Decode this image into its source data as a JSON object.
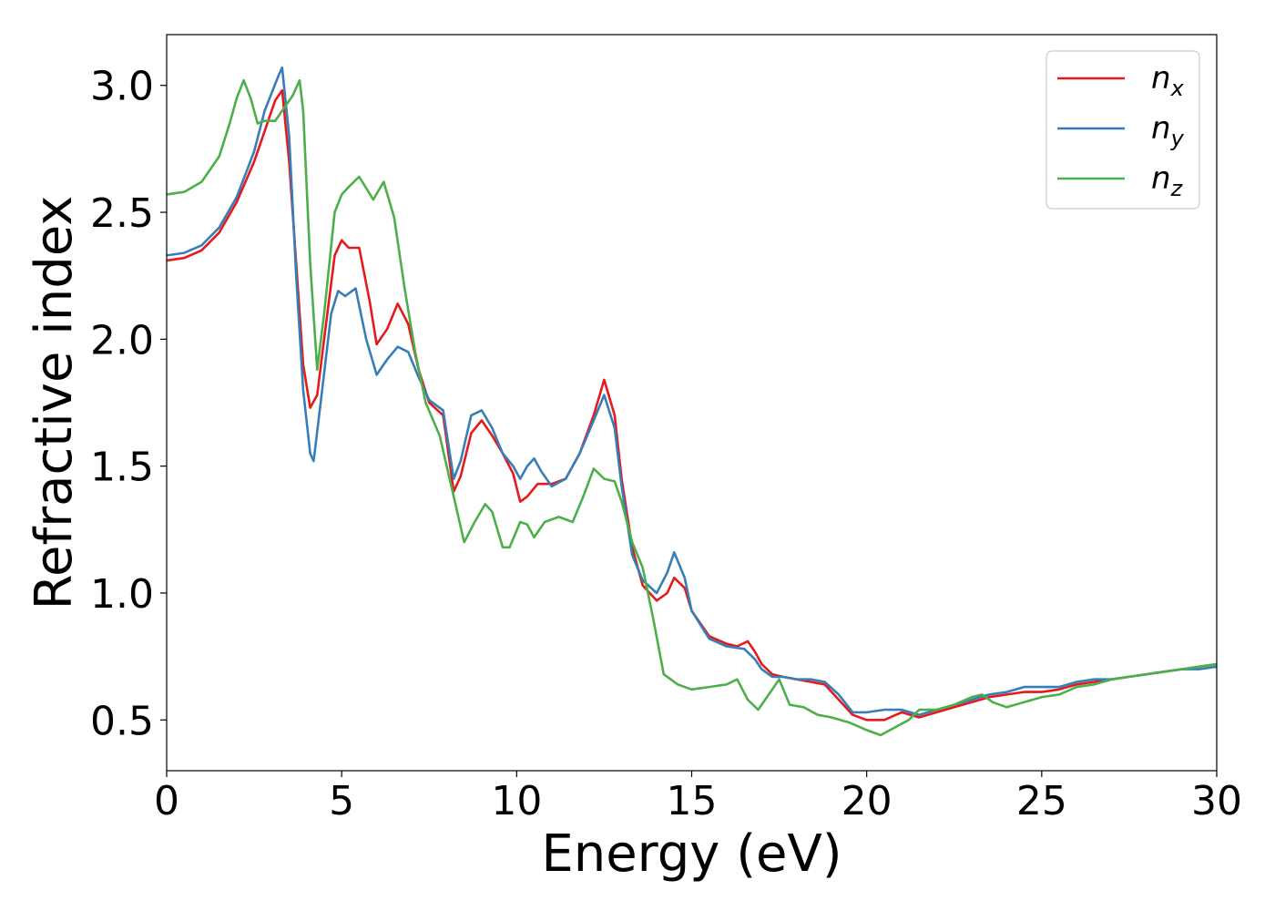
{
  "chart_data": {
    "type": "line",
    "title": "",
    "xlabel": "Energy (eV)",
    "ylabel": "Refractive index",
    "xlim": [
      0,
      30
    ],
    "ylim": [
      0.3,
      3.2
    ],
    "x_ticks": [
      0,
      5,
      10,
      15,
      20,
      25,
      30
    ],
    "y_ticks": [
      0.5,
      1.0,
      1.5,
      2.0,
      2.5,
      3.0
    ],
    "x_tick_labels": [
      "0",
      "5",
      "10",
      "15",
      "20",
      "25",
      "30"
    ],
    "y_tick_labels": [
      "0.5",
      "1.0",
      "1.5",
      "2.0",
      "2.5",
      "3.0"
    ],
    "grid": false,
    "legend_position": "top-right",
    "series": [
      {
        "name": "n",
        "subscript": "x",
        "color": "#e41a1c",
        "points": [
          [
            0,
            2.31
          ],
          [
            0.5,
            2.32
          ],
          [
            1.0,
            2.35
          ],
          [
            1.5,
            2.42
          ],
          [
            2.0,
            2.54
          ],
          [
            2.5,
            2.7
          ],
          [
            2.8,
            2.82
          ],
          [
            3.1,
            2.94
          ],
          [
            3.3,
            2.98
          ],
          [
            3.5,
            2.7
          ],
          [
            3.7,
            2.3
          ],
          [
            3.9,
            1.9
          ],
          [
            4.1,
            1.73
          ],
          [
            4.3,
            1.78
          ],
          [
            4.5,
            2.0
          ],
          [
            4.8,
            2.33
          ],
          [
            5.0,
            2.39
          ],
          [
            5.2,
            2.36
          ],
          [
            5.5,
            2.36
          ],
          [
            5.8,
            2.15
          ],
          [
            6.0,
            1.98
          ],
          [
            6.3,
            2.04
          ],
          [
            6.6,
            2.14
          ],
          [
            6.9,
            2.06
          ],
          [
            7.2,
            1.88
          ],
          [
            7.5,
            1.75
          ],
          [
            7.9,
            1.7
          ],
          [
            8.2,
            1.4
          ],
          [
            8.4,
            1.46
          ],
          [
            8.7,
            1.63
          ],
          [
            9.0,
            1.68
          ],
          [
            9.3,
            1.62
          ],
          [
            9.6,
            1.55
          ],
          [
            9.9,
            1.47
          ],
          [
            10.1,
            1.36
          ],
          [
            10.3,
            1.38
          ],
          [
            10.6,
            1.43
          ],
          [
            11.0,
            1.43
          ],
          [
            11.4,
            1.45
          ],
          [
            11.8,
            1.55
          ],
          [
            12.2,
            1.7
          ],
          [
            12.5,
            1.84
          ],
          [
            12.8,
            1.7
          ],
          [
            13.0,
            1.45
          ],
          [
            13.3,
            1.18
          ],
          [
            13.6,
            1.03
          ],
          [
            14.0,
            0.97
          ],
          [
            14.3,
            1.0
          ],
          [
            14.5,
            1.06
          ],
          [
            14.8,
            1.02
          ],
          [
            15.0,
            0.93
          ],
          [
            15.5,
            0.83
          ],
          [
            16.0,
            0.8
          ],
          [
            16.3,
            0.79
          ],
          [
            16.6,
            0.81
          ],
          [
            16.8,
            0.77
          ],
          [
            17.0,
            0.72
          ],
          [
            17.3,
            0.68
          ],
          [
            17.6,
            0.67
          ],
          [
            18.0,
            0.66
          ],
          [
            18.4,
            0.65
          ],
          [
            18.8,
            0.64
          ],
          [
            19.2,
            0.58
          ],
          [
            19.6,
            0.52
          ],
          [
            20.0,
            0.5
          ],
          [
            20.5,
            0.5
          ],
          [
            21.0,
            0.53
          ],
          [
            21.5,
            0.51
          ],
          [
            22.0,
            0.53
          ],
          [
            22.5,
            0.55
          ],
          [
            23.0,
            0.57
          ],
          [
            23.5,
            0.59
          ],
          [
            24.0,
            0.6
          ],
          [
            24.5,
            0.61
          ],
          [
            25.0,
            0.61
          ],
          [
            25.5,
            0.62
          ],
          [
            26.0,
            0.64
          ],
          [
            26.5,
            0.65
          ],
          [
            27.0,
            0.66
          ],
          [
            27.5,
            0.67
          ],
          [
            28.0,
            0.68
          ],
          [
            28.5,
            0.69
          ],
          [
            29.0,
            0.7
          ],
          [
            29.5,
            0.71
          ],
          [
            30.0,
            0.72
          ]
        ]
      },
      {
        "name": "n",
        "subscript": "y",
        "color": "#377eb8",
        "points": [
          [
            0,
            2.33
          ],
          [
            0.5,
            2.34
          ],
          [
            1.0,
            2.37
          ],
          [
            1.5,
            2.44
          ],
          [
            2.0,
            2.56
          ],
          [
            2.5,
            2.74
          ],
          [
            2.8,
            2.9
          ],
          [
            3.0,
            2.97
          ],
          [
            3.2,
            3.04
          ],
          [
            3.3,
            3.07
          ],
          [
            3.5,
            2.8
          ],
          [
            3.7,
            2.25
          ],
          [
            3.9,
            1.8
          ],
          [
            4.1,
            1.55
          ],
          [
            4.2,
            1.52
          ],
          [
            4.4,
            1.75
          ],
          [
            4.7,
            2.1
          ],
          [
            4.9,
            2.19
          ],
          [
            5.1,
            2.17
          ],
          [
            5.4,
            2.2
          ],
          [
            5.7,
            2.0
          ],
          [
            6.0,
            1.86
          ],
          [
            6.3,
            1.92
          ],
          [
            6.6,
            1.97
          ],
          [
            6.9,
            1.95
          ],
          [
            7.2,
            1.85
          ],
          [
            7.5,
            1.76
          ],
          [
            7.9,
            1.72
          ],
          [
            8.2,
            1.45
          ],
          [
            8.4,
            1.52
          ],
          [
            8.7,
            1.7
          ],
          [
            9.0,
            1.72
          ],
          [
            9.3,
            1.65
          ],
          [
            9.6,
            1.55
          ],
          [
            9.9,
            1.5
          ],
          [
            10.1,
            1.45
          ],
          [
            10.3,
            1.5
          ],
          [
            10.5,
            1.53
          ],
          [
            10.7,
            1.48
          ],
          [
            11.0,
            1.42
          ],
          [
            11.4,
            1.45
          ],
          [
            11.8,
            1.55
          ],
          [
            12.2,
            1.68
          ],
          [
            12.5,
            1.78
          ],
          [
            12.8,
            1.65
          ],
          [
            13.0,
            1.42
          ],
          [
            13.3,
            1.15
          ],
          [
            13.6,
            1.05
          ],
          [
            14.0,
            1.0
          ],
          [
            14.3,
            1.08
          ],
          [
            14.5,
            1.16
          ],
          [
            14.8,
            1.06
          ],
          [
            15.0,
            0.93
          ],
          [
            15.5,
            0.82
          ],
          [
            16.0,
            0.79
          ],
          [
            16.5,
            0.78
          ],
          [
            16.8,
            0.74
          ],
          [
            17.0,
            0.7
          ],
          [
            17.3,
            0.67
          ],
          [
            17.6,
            0.67
          ],
          [
            18.0,
            0.66
          ],
          [
            18.4,
            0.66
          ],
          [
            18.8,
            0.65
          ],
          [
            19.2,
            0.6
          ],
          [
            19.6,
            0.53
          ],
          [
            20.0,
            0.53
          ],
          [
            20.5,
            0.54
          ],
          [
            21.0,
            0.54
          ],
          [
            21.5,
            0.52
          ],
          [
            22.0,
            0.54
          ],
          [
            22.5,
            0.56
          ],
          [
            23.0,
            0.58
          ],
          [
            23.5,
            0.6
          ],
          [
            24.0,
            0.61
          ],
          [
            24.5,
            0.63
          ],
          [
            25.0,
            0.63
          ],
          [
            25.5,
            0.63
          ],
          [
            26.0,
            0.65
          ],
          [
            26.5,
            0.66
          ],
          [
            27.0,
            0.66
          ],
          [
            27.5,
            0.67
          ],
          [
            28.0,
            0.68
          ],
          [
            28.5,
            0.69
          ],
          [
            29.0,
            0.7
          ],
          [
            29.5,
            0.7
          ],
          [
            30.0,
            0.71
          ]
        ]
      },
      {
        "name": "n",
        "subscript": "z",
        "color": "#4daf4a",
        "points": [
          [
            0,
            2.57
          ],
          [
            0.5,
            2.58
          ],
          [
            1.0,
            2.62
          ],
          [
            1.5,
            2.72
          ],
          [
            1.8,
            2.85
          ],
          [
            2.0,
            2.95
          ],
          [
            2.2,
            3.02
          ],
          [
            2.4,
            2.95
          ],
          [
            2.6,
            2.85
          ],
          [
            2.8,
            2.86
          ],
          [
            3.1,
            2.86
          ],
          [
            3.4,
            2.92
          ],
          [
            3.6,
            2.96
          ],
          [
            3.8,
            3.02
          ],
          [
            3.9,
            2.9
          ],
          [
            4.1,
            2.3
          ],
          [
            4.3,
            1.88
          ],
          [
            4.5,
            2.1
          ],
          [
            4.8,
            2.5
          ],
          [
            5.0,
            2.57
          ],
          [
            5.2,
            2.6
          ],
          [
            5.5,
            2.64
          ],
          [
            5.9,
            2.55
          ],
          [
            6.2,
            2.62
          ],
          [
            6.5,
            2.48
          ],
          [
            6.8,
            2.2
          ],
          [
            7.1,
            1.95
          ],
          [
            7.4,
            1.75
          ],
          [
            7.8,
            1.62
          ],
          [
            8.2,
            1.38
          ],
          [
            8.5,
            1.2
          ],
          [
            8.8,
            1.28
          ],
          [
            9.1,
            1.35
          ],
          [
            9.3,
            1.32
          ],
          [
            9.6,
            1.18
          ],
          [
            9.8,
            1.18
          ],
          [
            10.1,
            1.28
          ],
          [
            10.3,
            1.27
          ],
          [
            10.5,
            1.22
          ],
          [
            10.8,
            1.28
          ],
          [
            11.2,
            1.3
          ],
          [
            11.6,
            1.28
          ],
          [
            11.9,
            1.38
          ],
          [
            12.2,
            1.49
          ],
          [
            12.5,
            1.45
          ],
          [
            12.8,
            1.44
          ],
          [
            13.0,
            1.36
          ],
          [
            13.3,
            1.2
          ],
          [
            13.6,
            1.1
          ],
          [
            13.9,
            0.9
          ],
          [
            14.2,
            0.68
          ],
          [
            14.6,
            0.64
          ],
          [
            15.0,
            0.62
          ],
          [
            15.5,
            0.63
          ],
          [
            16.0,
            0.64
          ],
          [
            16.3,
            0.66
          ],
          [
            16.6,
            0.58
          ],
          [
            16.9,
            0.54
          ],
          [
            17.2,
            0.6
          ],
          [
            17.5,
            0.66
          ],
          [
            17.8,
            0.56
          ],
          [
            18.2,
            0.55
          ],
          [
            18.6,
            0.52
          ],
          [
            19.0,
            0.51
          ],
          [
            19.5,
            0.49
          ],
          [
            20.0,
            0.46
          ],
          [
            20.4,
            0.44
          ],
          [
            20.8,
            0.47
          ],
          [
            21.2,
            0.5
          ],
          [
            21.5,
            0.54
          ],
          [
            22.0,
            0.54
          ],
          [
            22.5,
            0.56
          ],
          [
            23.0,
            0.59
          ],
          [
            23.3,
            0.6
          ],
          [
            23.6,
            0.57
          ],
          [
            24.0,
            0.55
          ],
          [
            24.5,
            0.57
          ],
          [
            25.0,
            0.59
          ],
          [
            25.5,
            0.6
          ],
          [
            26.0,
            0.63
          ],
          [
            26.5,
            0.64
          ],
          [
            27.0,
            0.66
          ],
          [
            27.5,
            0.67
          ],
          [
            28.0,
            0.68
          ],
          [
            28.5,
            0.69
          ],
          [
            29.0,
            0.7
          ],
          [
            29.5,
            0.71
          ],
          [
            30.0,
            0.72
          ]
        ]
      }
    ]
  }
}
